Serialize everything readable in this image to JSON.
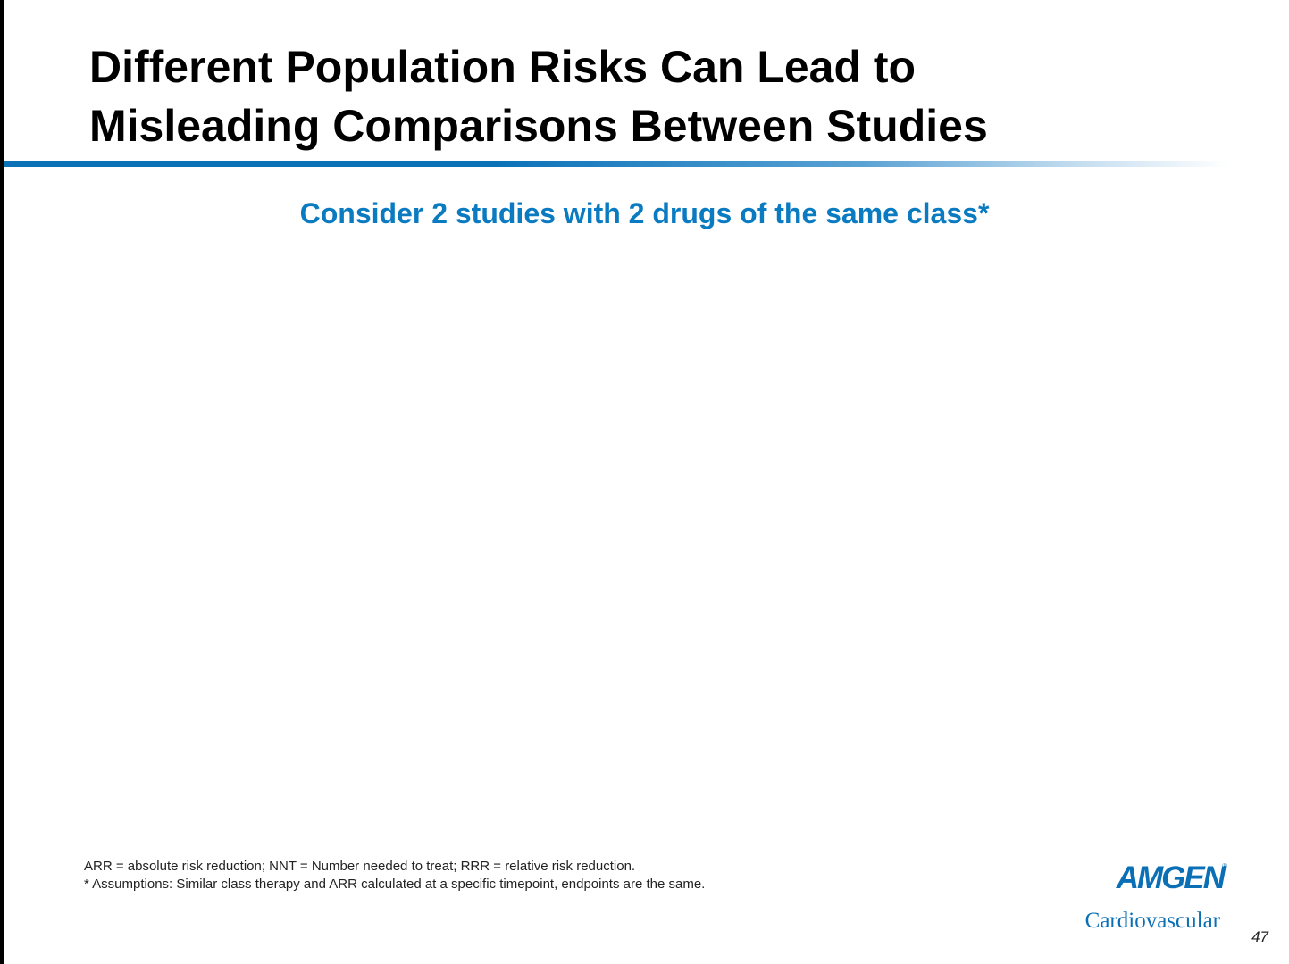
{
  "slide": {
    "title_lines": [
      "Different Population Risks Can Lead to",
      "Misleading Comparisons Between Studies"
    ],
    "subtitle": "Consider 2 studies with 2 drugs of the same class*",
    "footnotes": [
      "ARR = absolute risk reduction; NNT = Number needed to treat; RRR = relative risk reduction.",
      "* Assumptions: Similar class therapy and ARR calculated at a specific timepoint, endpoints are the same."
    ],
    "page_number": "47"
  },
  "logo": {
    "wordmark": "AMGEN",
    "registered_mark": "®",
    "subtitle": "Cardiovascular"
  },
  "colors": {
    "accent_blue": "#0b7bc1",
    "logo_blue": "#0b6fb6",
    "title_text": "#000000"
  }
}
